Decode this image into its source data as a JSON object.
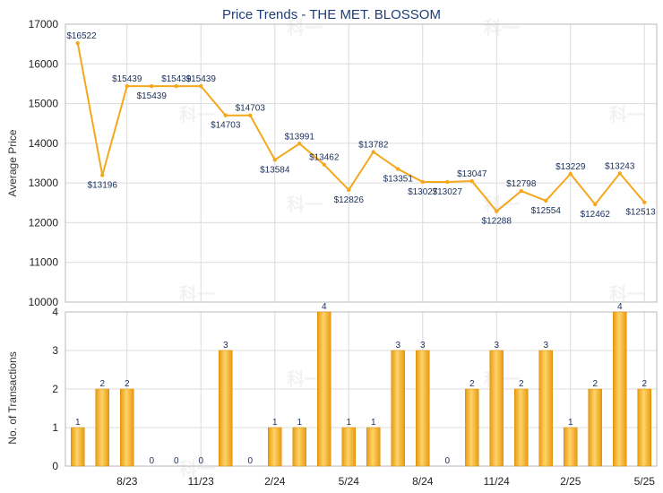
{
  "chart_data": [
    {
      "type": "line",
      "title": "Price Trends - THE MET. BLOSSOM",
      "ylabel": "Average Price",
      "ylim": [
        10000,
        17000
      ],
      "yticks": [
        10000,
        11000,
        12000,
        13000,
        14000,
        15000,
        16000,
        17000
      ],
      "grid": true,
      "color": "#f5a81c",
      "series": [
        {
          "values": [
            16522,
            13196,
            15439,
            15439,
            15439,
            15439,
            14703,
            14703,
            13584,
            13991,
            13462,
            12826,
            13782,
            13351,
            13027,
            13027,
            13047,
            12288,
            12798,
            12554,
            13229,
            12462,
            13243,
            12513
          ],
          "labels": [
            "$16522",
            "$13196",
            "$15439",
            "$15439",
            "$15439",
            "$15439",
            "$14703",
            "$14703",
            "$13584",
            "$13991",
            "$13462",
            "$12826",
            "$13782",
            "$13351",
            "$13027",
            "$13027",
            "$13047",
            "$12288",
            "$12798",
            "$12554",
            "$13229",
            "$12462",
            "$13243",
            "$12513"
          ]
        }
      ]
    },
    {
      "type": "bar",
      "ylabel": "No. of Transactions",
      "ylim": [
        0,
        4
      ],
      "yticks": [
        0,
        1,
        2,
        3,
        4
      ],
      "xtick_labels": [
        "8/23",
        "11/23",
        "2/24",
        "5/24",
        "8/24",
        "11/24",
        "2/25",
        "5/25"
      ],
      "grid": true,
      "color": "#f5a81c",
      "values": [
        1,
        2,
        2,
        0,
        0,
        0,
        3,
        0,
        1,
        1,
        4,
        1,
        1,
        3,
        3,
        0,
        2,
        3,
        2,
        3,
        1,
        2,
        4,
        2
      ]
    }
  ],
  "watermark": "科一"
}
